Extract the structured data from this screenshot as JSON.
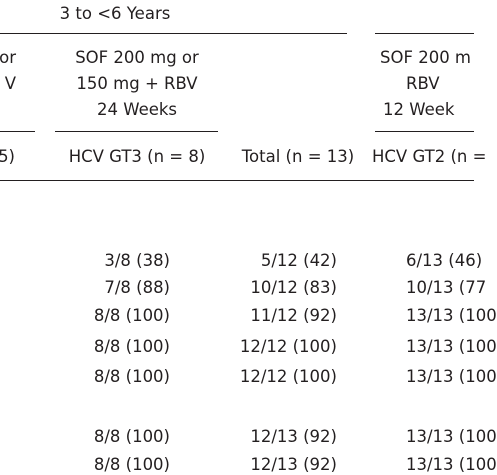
{
  "header": {
    "group": "3 to <6 Years",
    "columns": [
      {
        "lines": [
          "or",
          "V"
        ],
        "n": "5)"
      },
      {
        "lines": [
          "SOF 200 mg or",
          "150 mg + RBV",
          "24 Weeks"
        ],
        "n": "HCV GT3 (n = 8)"
      },
      {
        "n": "Total (n = 13)"
      },
      {
        "lines": [
          "SOF 200 m",
          "RBV",
          "12 Week"
        ],
        "n": "HCV GT2 (n ="
      }
    ]
  },
  "table": {
    "rows": [
      [
        "3/8 (38)",
        "5/12 (42)",
        "6/13 (46)"
      ],
      [
        "7/8 (88)",
        "10/12 (83)",
        "10/13 (77"
      ],
      [
        "8/8 (100)",
        "11/12 (92)",
        "13/13 (100"
      ],
      [
        "8/8 (100)",
        "12/12 (100)",
        "13/13 (100"
      ],
      [
        "8/8 (100)",
        "12/12 (100)",
        "13/13 (100"
      ],
      [
        "8/8 (100)",
        "12/13 (92)",
        "13/13 (100"
      ],
      [
        "8/8 (100)",
        "12/13 (92)",
        "13/13 (100"
      ]
    ]
  }
}
